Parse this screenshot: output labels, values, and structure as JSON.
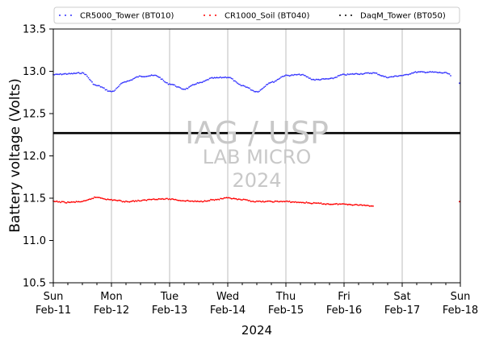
{
  "chart_data": {
    "type": "scatter",
    "xlabel": "2024",
    "ylabel": "Battery voltage (Volts)",
    "ylim": [
      10.5,
      13.5
    ],
    "xlim": [
      "2024-02-11",
      "2024-02-18"
    ],
    "yticks": [
      "10.5",
      "11.0",
      "11.5",
      "12.0",
      "12.5",
      "13.0",
      "13.5"
    ],
    "xticks": [
      {
        "day": "Sun",
        "date": "Feb-11"
      },
      {
        "day": "Mon",
        "date": "Feb-12"
      },
      {
        "day": "Tue",
        "date": "Feb-13"
      },
      {
        "day": "Wed",
        "date": "Feb-14"
      },
      {
        "day": "Thu",
        "date": "Feb-15"
      },
      {
        "day": "Fri",
        "date": "Feb-16"
      },
      {
        "day": "Sat",
        "date": "Feb-17"
      },
      {
        "day": "Sun",
        "date": "Feb-18"
      }
    ],
    "grid": "vertical",
    "legend_position": "top",
    "reference_line": {
      "y": 12.27,
      "color": "#000000"
    },
    "watermark": {
      "line1": "IAG / USP",
      "line2": "LAB MICRO",
      "line3": "2024"
    },
    "series": [
      {
        "name": "CR5000_Tower (BT010)",
        "color": "#3333ff",
        "x": [
          "2024-02-11 00:00",
          "2024-02-11 06:00",
          "2024-02-11 12:00",
          "2024-02-11 18:00",
          "2024-02-12 00:00",
          "2024-02-12 06:00",
          "2024-02-12 12:00",
          "2024-02-12 18:00",
          "2024-02-13 00:00",
          "2024-02-13 06:00",
          "2024-02-13 12:00",
          "2024-02-13 18:00",
          "2024-02-14 00:00",
          "2024-02-14 06:00",
          "2024-02-14 12:00",
          "2024-02-14 18:00",
          "2024-02-15 00:00",
          "2024-02-15 06:00",
          "2024-02-15 12:00",
          "2024-02-15 18:00",
          "2024-02-16 00:00",
          "2024-02-16 06:00",
          "2024-02-16 12:00",
          "2024-02-16 18:00",
          "2024-02-17 00:00",
          "2024-02-17 06:00",
          "2024-02-17 12:00",
          "2024-02-17 18:00",
          "2024-02-18 00:00"
        ],
        "y": [
          12.96,
          12.97,
          12.98,
          12.83,
          12.76,
          12.88,
          12.94,
          12.95,
          12.85,
          12.79,
          12.86,
          12.92,
          12.93,
          12.83,
          12.76,
          12.87,
          12.95,
          12.96,
          12.9,
          12.91,
          12.96,
          12.97,
          12.98,
          12.93,
          12.95,
          12.99,
          12.99,
          12.98,
          12.86
        ]
      },
      {
        "name": "CR1000_Soil (BT040)",
        "color": "#ff0000",
        "x": [
          "2024-02-11 00:00",
          "2024-02-11 06:00",
          "2024-02-11 12:00",
          "2024-02-11 18:00",
          "2024-02-12 00:00",
          "2024-02-12 06:00",
          "2024-02-12 12:00",
          "2024-02-12 18:00",
          "2024-02-13 00:00",
          "2024-02-13 06:00",
          "2024-02-13 12:00",
          "2024-02-13 18:00",
          "2024-02-14 00:00",
          "2024-02-14 06:00",
          "2024-02-14 12:00",
          "2024-02-14 18:00",
          "2024-02-15 00:00",
          "2024-02-15 06:00",
          "2024-02-15 12:00",
          "2024-02-15 18:00",
          "2024-02-16 00:00",
          "2024-02-16 06:00",
          "2024-02-16 12:00",
          "2024-02-16 18:00",
          "2024-02-17 00:00",
          "2024-02-17 06:00",
          "2024-02-17 12:00",
          "2024-02-17 18:00",
          "2024-02-18 00:00"
        ],
        "y": [
          11.46,
          11.45,
          11.46,
          11.51,
          11.48,
          11.46,
          11.47,
          11.49,
          11.49,
          11.47,
          11.46,
          11.48,
          11.5,
          11.48,
          11.46,
          11.46,
          11.46,
          11.45,
          11.44,
          11.43,
          11.43,
          11.42,
          11.41,
          null,
          null,
          null,
          null,
          null,
          11.46
        ]
      },
      {
        "name": "DaqM_Tower (BT050)",
        "color": "#000000",
        "x": [
          "2024-02-11 00:00",
          "2024-02-18 00:00"
        ],
        "y": [
          12.27,
          12.27
        ]
      }
    ]
  }
}
